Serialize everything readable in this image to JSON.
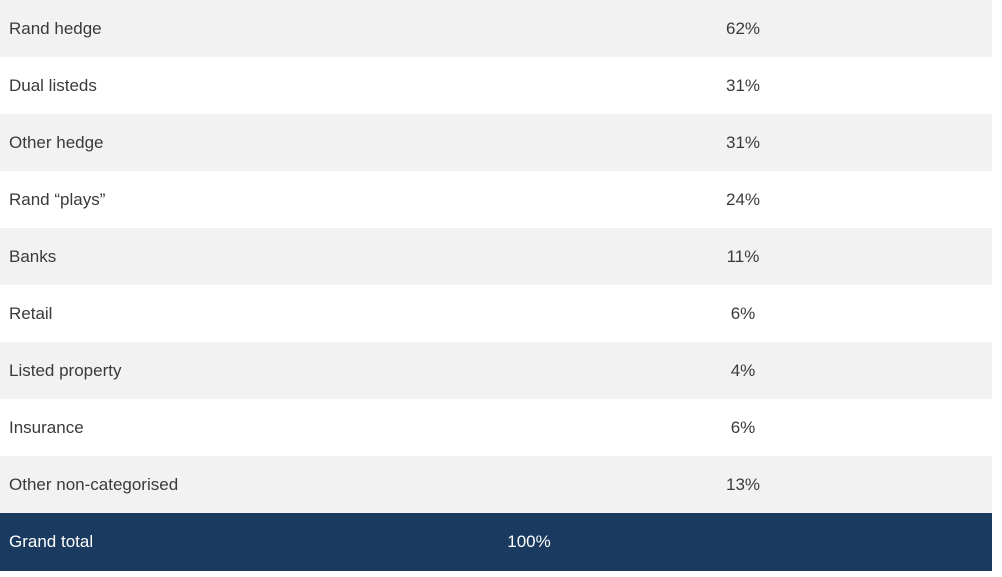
{
  "table": {
    "rows": [
      {
        "label": "Rand hedge",
        "value": "62%"
      },
      {
        "label": "Dual listeds",
        "value": "31%"
      },
      {
        "label": "Other hedge",
        "value": "31%"
      },
      {
        "label": "Rand “plays”",
        "value": "24%"
      },
      {
        "label": "Banks",
        "value": "11%"
      },
      {
        "label": "Retail",
        "value": "6%"
      },
      {
        "label": "Listed property",
        "value": "4%"
      },
      {
        "label": "Insurance",
        "value": "6%"
      },
      {
        "label": "Other non-categorised",
        "value": "13%"
      }
    ],
    "total": {
      "label": "Grand total",
      "value": "100%"
    },
    "colors": {
      "stripe": "#f2f2f2",
      "total_background": "#1a3a60",
      "total_text": "#ffffff"
    }
  }
}
